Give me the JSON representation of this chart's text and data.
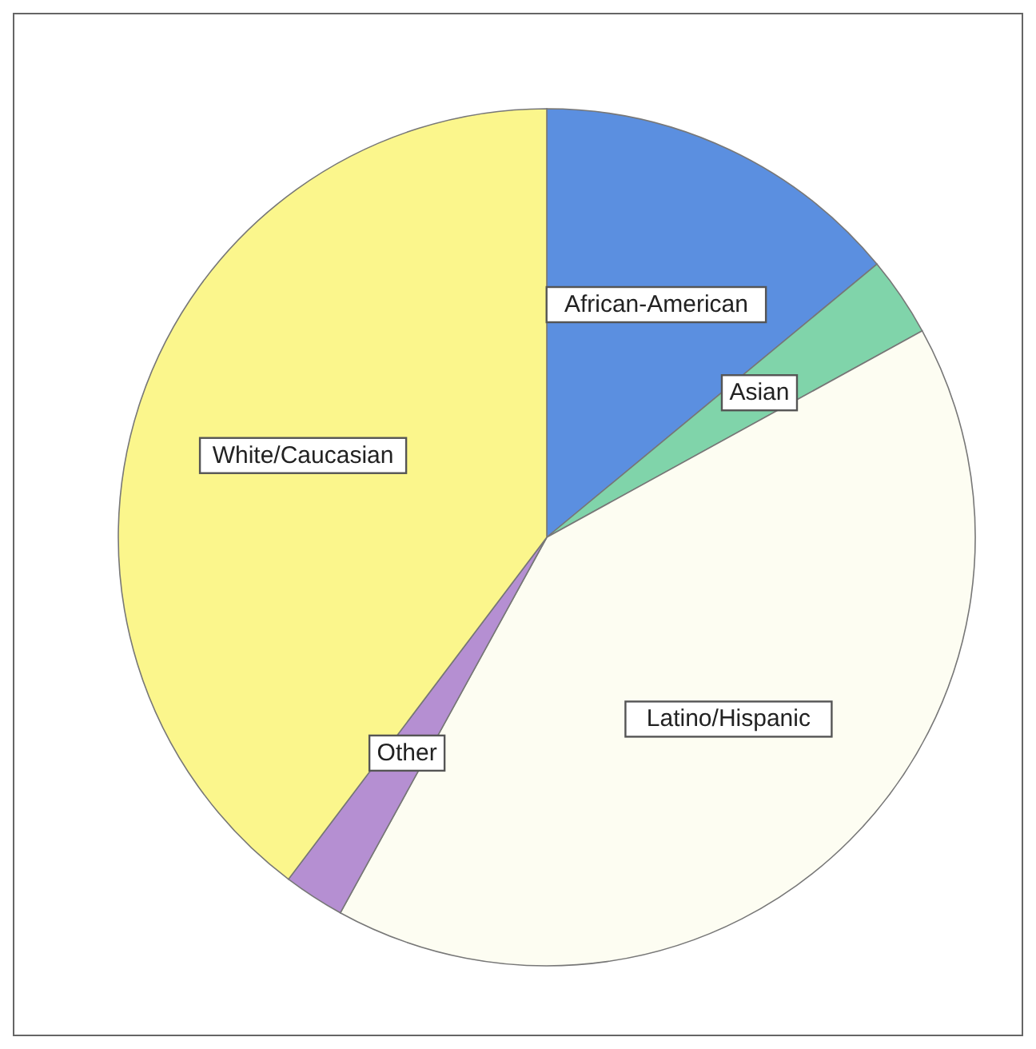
{
  "chart_data": {
    "type": "pie",
    "categories": [
      "African-American",
      "Asian",
      "Latino/Hispanic",
      "Other",
      "White/Caucasian"
    ],
    "values": [
      14,
      3,
      41,
      2.3,
      39.7
    ],
    "colors": [
      "#5b8fe0",
      "#80d4aa",
      "#fdfdf2",
      "#b58fd2",
      "#fbf68c"
    ],
    "legend": false
  }
}
